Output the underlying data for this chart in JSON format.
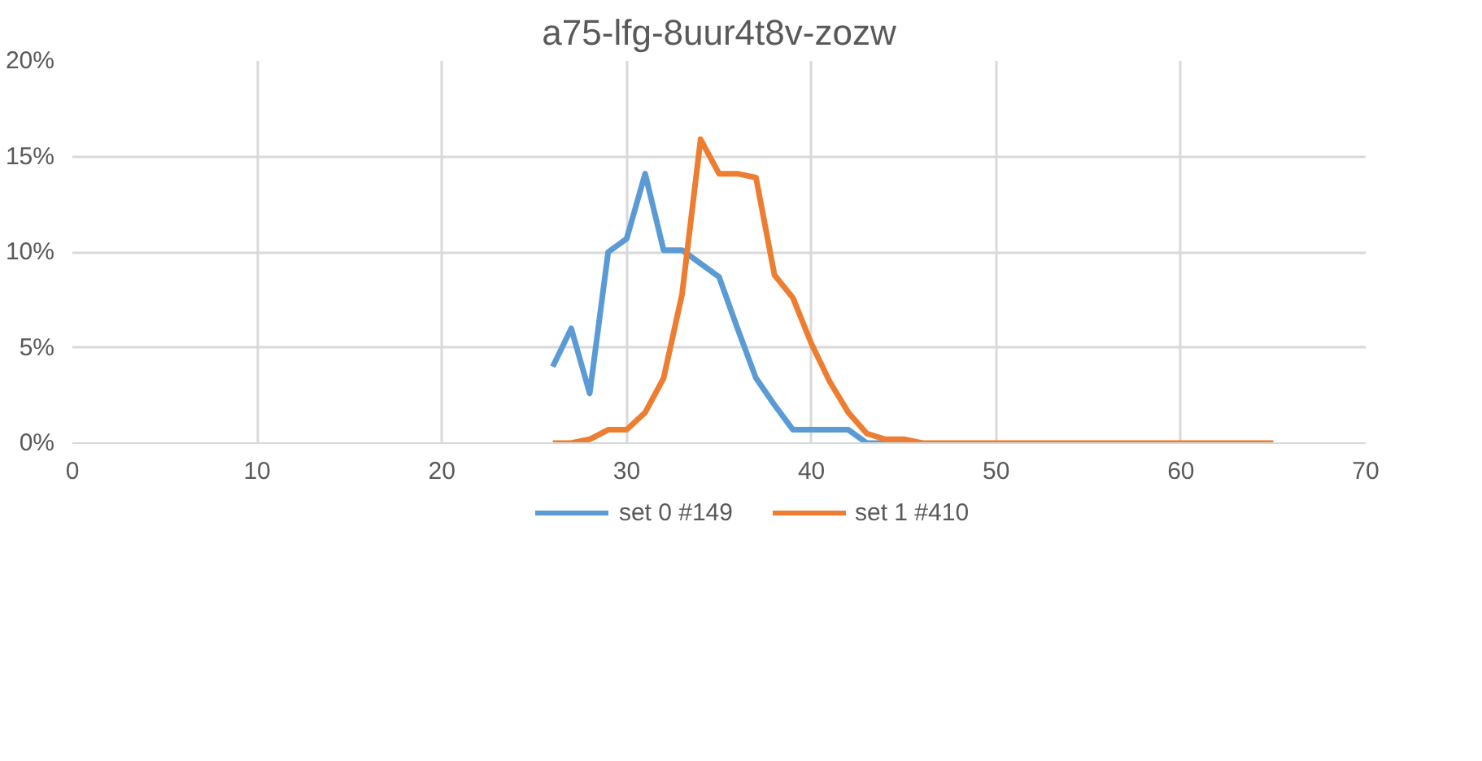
{
  "chart_data": {
    "type": "line",
    "title": "a75-lfg-8uur4t8v-zozw",
    "xlim": [
      0,
      70
    ],
    "xticks": [
      0,
      10,
      20,
      30,
      40,
      50,
      60,
      70
    ],
    "ylim": [
      0,
      20
    ],
    "yticks": [
      {
        "value": 0,
        "label": "0%"
      },
      {
        "value": 5,
        "label": "5%"
      },
      {
        "value": 10,
        "label": "10%"
      },
      {
        "value": 15,
        "label": "15%"
      },
      {
        "value": 20,
        "label": "20%"
      }
    ],
    "grid": true,
    "legend": "bottom",
    "marker": "none",
    "line_style": "solid",
    "series": [
      {
        "name": "set 0 #149",
        "color": "#5b9bd5",
        "x": [
          26,
          27,
          28,
          29,
          30,
          31,
          32,
          33,
          34,
          35,
          36,
          37,
          38,
          39,
          40,
          41,
          42,
          43,
          44,
          45,
          46
        ],
        "values": [
          4.0,
          6.0,
          2.6,
          10.0,
          10.7,
          14.1,
          10.1,
          10.1,
          9.4,
          8.7,
          6.0,
          3.4,
          2.0,
          0.7,
          0.7,
          0.7,
          0.7,
          0,
          0,
          0,
          0
        ]
      },
      {
        "name": "set 1 #410",
        "color": "#ed7d31",
        "x": [
          26,
          27,
          28,
          29,
          30,
          31,
          32,
          33,
          34,
          35,
          36,
          37,
          38,
          39,
          40,
          41,
          42,
          43,
          44,
          45,
          46,
          47,
          48,
          49,
          50,
          51,
          52,
          53,
          54,
          55,
          56,
          57,
          58,
          59,
          60,
          61,
          62,
          63,
          64,
          65
        ],
        "values": [
          0,
          0,
          0.2,
          0.7,
          0.7,
          1.6,
          3.4,
          7.8,
          15.9,
          14.1,
          14.1,
          13.9,
          8.8,
          7.6,
          5.2,
          3.2,
          1.6,
          0.5,
          0.2,
          0.2,
          0,
          0,
          0,
          0,
          0,
          0,
          0,
          0,
          0,
          0,
          0,
          0,
          0,
          0,
          0,
          0,
          0,
          0,
          0,
          0
        ]
      }
    ]
  }
}
